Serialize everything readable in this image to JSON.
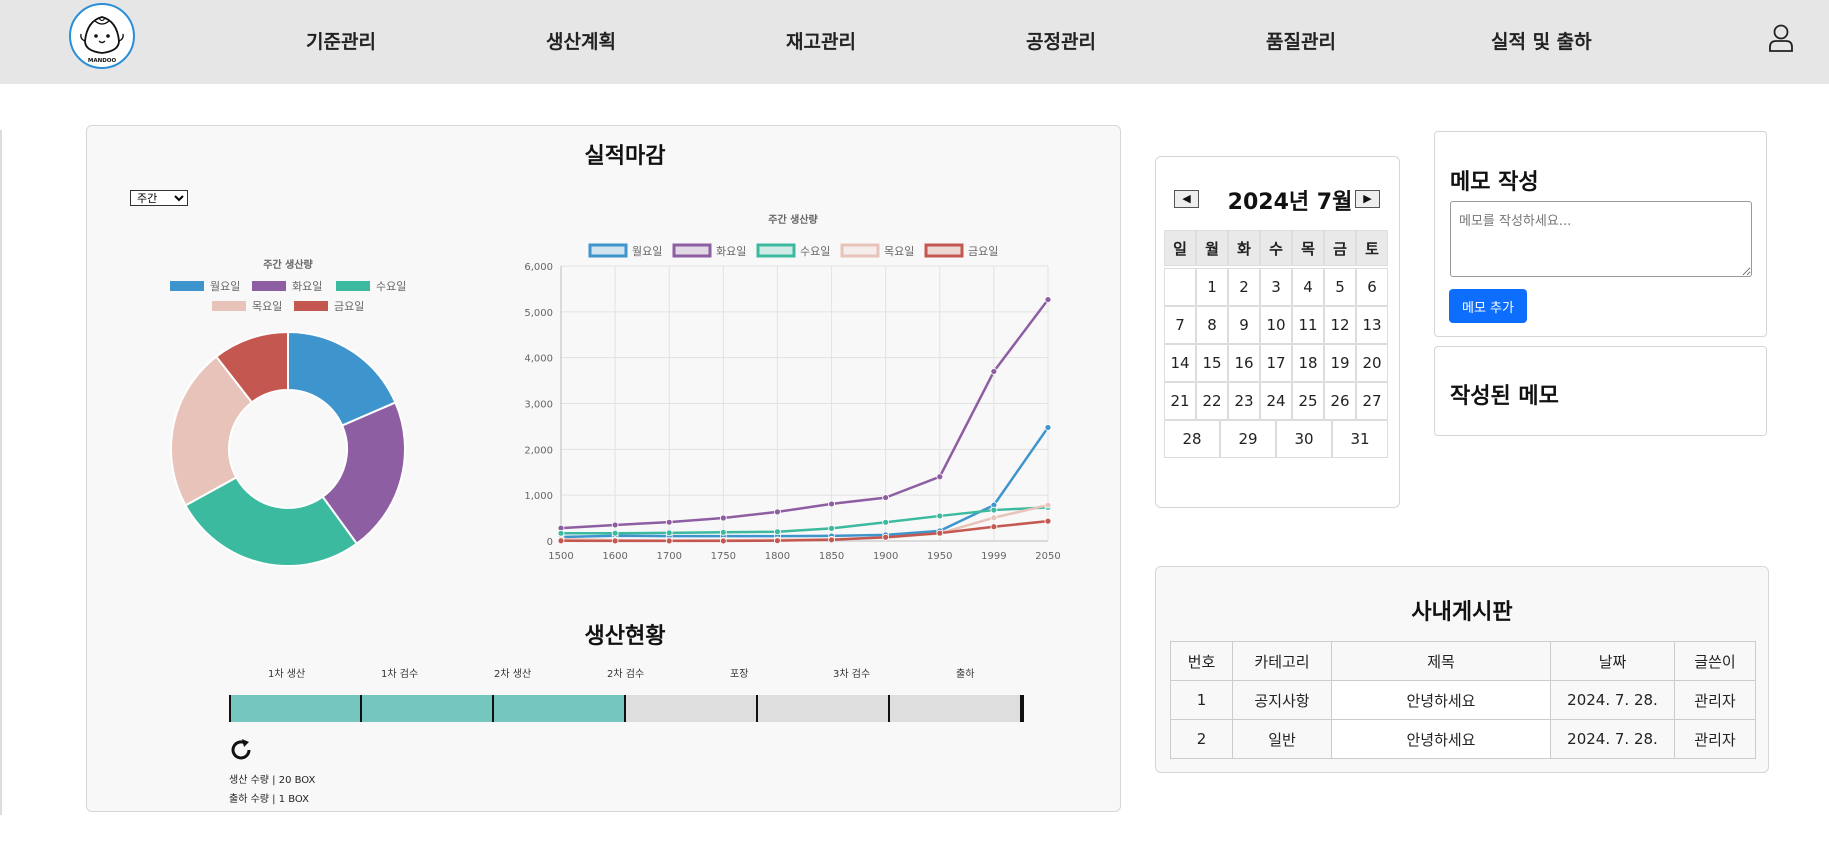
{
  "nav": {
    "logo_text": "MANDOO",
    "items": [
      "기준관리",
      "생산계획",
      "재고관리",
      "공정관리",
      "품질관리",
      "실적 및 출하"
    ]
  },
  "performance": {
    "title": "실적마감",
    "period_select": "주간"
  },
  "doughnut_chart": {
    "title": "주간 생산량",
    "legend": [
      "월요일",
      "화요일",
      "수요일",
      "목요일",
      "금요일"
    ]
  },
  "line_chart": {
    "title": "주간 생산량",
    "legend": [
      "월요일",
      "화요일",
      "수요일",
      "목요일",
      "금요일"
    ],
    "y_ticks": [
      "0",
      "1,000",
      "2,000",
      "3,000",
      "4,000",
      "5,000",
      "6,000"
    ],
    "x_ticks": [
      "1500",
      "1600",
      "1700",
      "1750",
      "1800",
      "1850",
      "1900",
      "1950",
      "1999",
      "2050"
    ]
  },
  "chart_data": [
    {
      "type": "pie",
      "title": "주간 생산량",
      "donut": true,
      "labels": [
        "월요일",
        "화요일",
        "수요일",
        "목요일",
        "금요일"
      ],
      "values": [
        18.5,
        21.5,
        27.0,
        22.5,
        10.5
      ],
      "colors": [
        "#3e95cd",
        "#8e5ea2",
        "#3cba9f",
        "#e8c3b9",
        "#c45850"
      ]
    },
    {
      "type": "line",
      "title": "주간 생산량",
      "x": [
        1500,
        1600,
        1700,
        1750,
        1800,
        1850,
        1900,
        1950,
        1999,
        2050
      ],
      "ylim": [
        0,
        6000
      ],
      "legend_position": "top",
      "series": [
        {
          "name": "월요일",
          "color": "#3e95cd",
          "values": [
            86,
            114,
            106,
            106,
            107,
            111,
            133,
            221,
            783,
            2478
          ]
        },
        {
          "name": "화요일",
          "color": "#8e5ea2",
          "values": [
            282,
            350,
            411,
            502,
            635,
            809,
            947,
            1402,
            3700,
            5267
          ]
        },
        {
          "name": "수요일",
          "color": "#3cba9f",
          "values": [
            168,
            170,
            178,
            190,
            203,
            276,
            408,
            547,
            675,
            734
          ]
        },
        {
          "name": "목요일",
          "color": "#e8c3b9",
          "values": [
            40,
            20,
            10,
            16,
            24,
            38,
            74,
            167,
            508,
            784
          ]
        },
        {
          "name": "금요일",
          "color": "#c45850",
          "values": [
            6,
            3,
            2,
            2,
            7,
            26,
            82,
            172,
            312,
            433
          ]
        }
      ]
    }
  ],
  "production": {
    "title": "생산현황",
    "steps": [
      "1차 생산",
      "1차 검수",
      "2차 생산",
      "2차 검수",
      "포장",
      "3차 검수",
      "출하"
    ],
    "completed_steps": 3,
    "done_color": "#76c6c0",
    "pending_color": "#dedede",
    "production_qty": "생산 수량 | 20 BOX",
    "shipping_qty": "출하 수량 | 1 BOX"
  },
  "calendar": {
    "title": "2024년 7월",
    "prev": "◀",
    "next": "▶",
    "weekdays": [
      "일",
      "월",
      "화",
      "수",
      "목",
      "금",
      "토"
    ],
    "first_weekday": 1,
    "days": 31
  },
  "memo": {
    "title": "메모 작성",
    "placeholder": "메모를 작성하세요...",
    "add_button": "메모 추가",
    "saved_title": "작성된 메모"
  },
  "board": {
    "title": "사내게시판",
    "headers": [
      "번호",
      "카테고리",
      "제목",
      "날짜",
      "글쓴이"
    ],
    "rows": [
      [
        "1",
        "공지사항",
        "안녕하세요",
        "2024. 7. 28.",
        "관리자"
      ],
      [
        "2",
        "일반",
        "안녕하세요",
        "2024. 7. 28.",
        "관리자"
      ]
    ]
  }
}
